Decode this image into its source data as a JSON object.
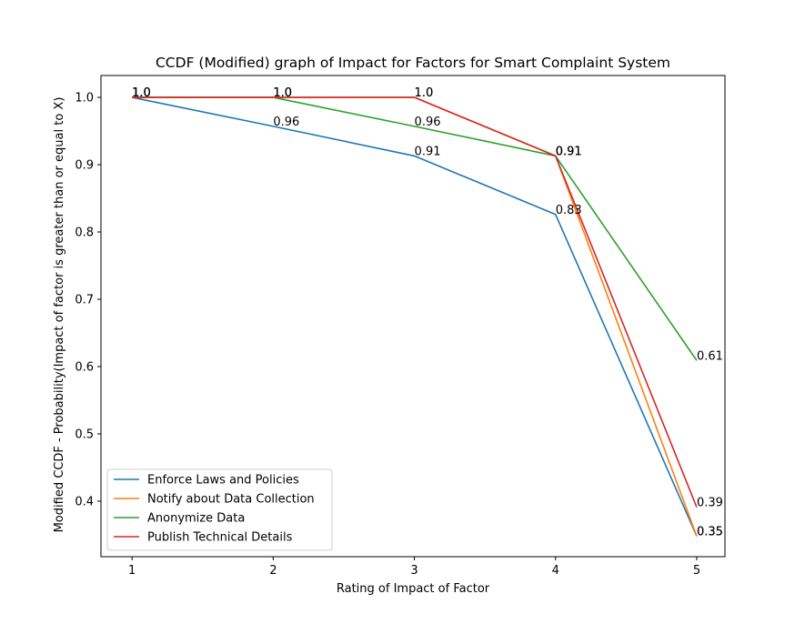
{
  "chart_data": {
    "type": "line",
    "title": "CCDF (Modified) graph of Impact for Factors for Smart Complaint System",
    "xlabel": "Rating of Impact of Factor",
    "ylabel": "Modified CCDF - Probability(Impact of factor is greater than or equal to X)",
    "x": [
      1,
      2,
      3,
      4,
      5
    ],
    "xlim": [
      0.78,
      5.2
    ],
    "ylim": [
      0.3175,
      1.0325
    ],
    "xticks": [
      "1",
      "2",
      "3",
      "4",
      "5"
    ],
    "yticks": [
      "0.4",
      "0.5",
      "0.6",
      "0.7",
      "0.8",
      "0.9",
      "1.0"
    ],
    "grid": false,
    "legend_position": "lower-left",
    "series": [
      {
        "name": "Enforce Laws and Policies",
        "color": "#1f77b4",
        "values": [
          1.0,
          0.957,
          0.913,
          0.826,
          0.348
        ],
        "labels": [
          "1.0",
          "0.96",
          "0.91",
          "0.83",
          "0.35"
        ]
      },
      {
        "name": "Notify about Data Collection",
        "color": "#ff7f0e",
        "values": [
          1.0,
          1.0,
          1.0,
          0.913,
          0.348
        ],
        "labels": [
          "1.0",
          "1.0",
          "1.0",
          "0.91",
          "0.35"
        ]
      },
      {
        "name": "Anonymize Data",
        "color": "#2ca02c",
        "values": [
          1.0,
          1.0,
          0.957,
          0.913,
          0.609
        ],
        "labels": [
          "1.0",
          "1.0",
          "0.96",
          "0.91",
          "0.61"
        ]
      },
      {
        "name": "Publish Technical Details",
        "color": "#d62728",
        "values": [
          1.0,
          1.0,
          1.0,
          0.913,
          0.391
        ],
        "labels": [
          "1.0",
          "1.0",
          "1.0",
          "0.91",
          "0.39"
        ]
      }
    ]
  }
}
